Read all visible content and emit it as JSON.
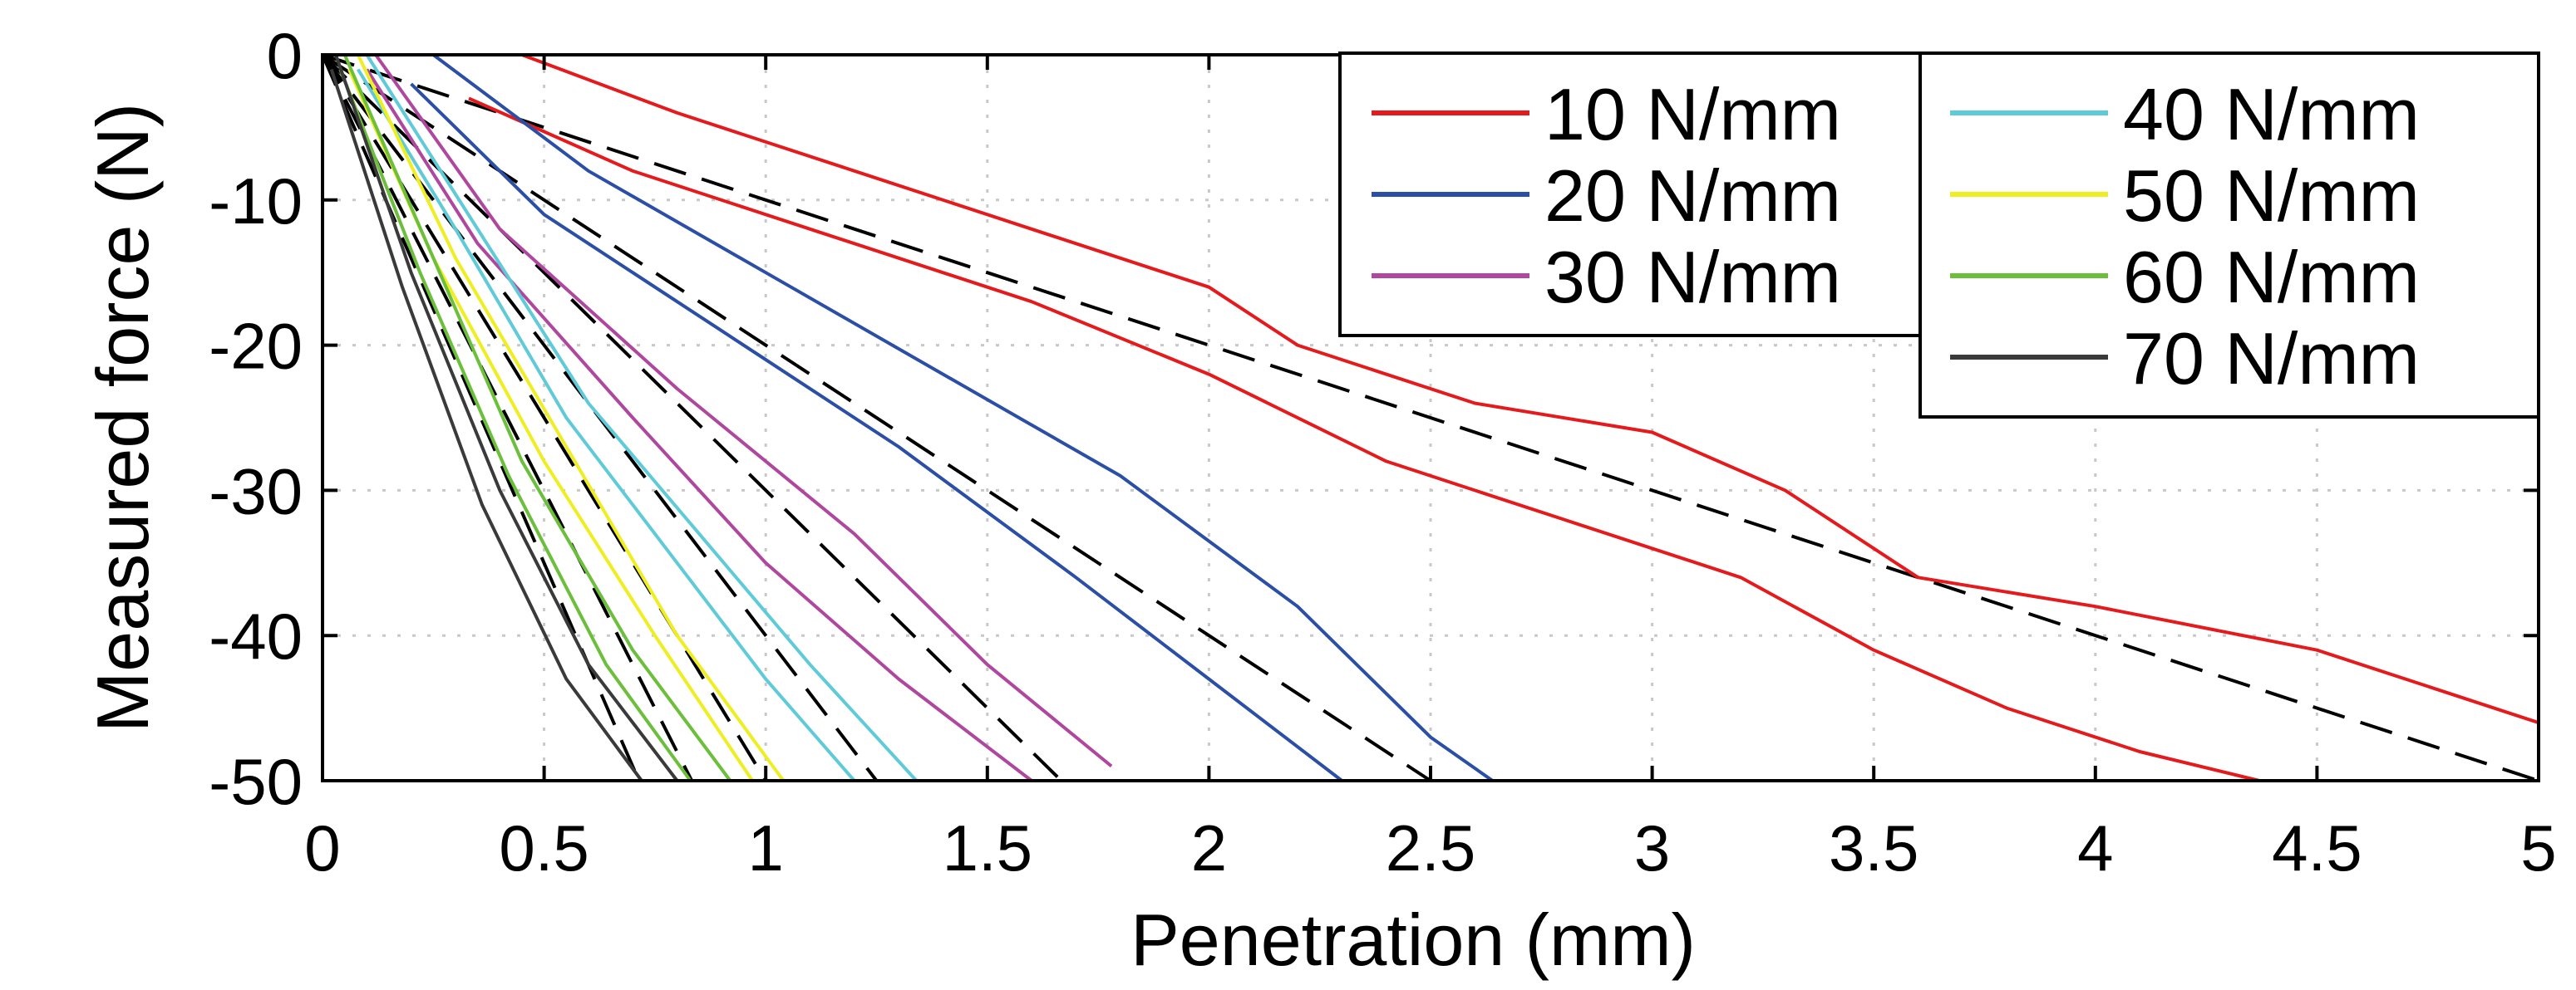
{
  "chart_data": {
    "type": "line",
    "title": "",
    "xlabel": "Penetration (mm)",
    "ylabel": "Measured force (N)",
    "xlim": [
      0,
      5
    ],
    "ylim": [
      -50,
      0
    ],
    "xticks": [
      0,
      0.5,
      1,
      1.5,
      2,
      2.5,
      3,
      3.5,
      4,
      4.5,
      5
    ],
    "xtick_labels": [
      "0",
      "0.5",
      "1",
      "1.5",
      "2",
      "2.5",
      "3",
      "3.5",
      "4",
      "4.5",
      "5"
    ],
    "yticks": [
      0,
      -10,
      -20,
      -30,
      -40,
      -50
    ],
    "ytick_labels": [
      "0",
      "-10",
      "-20",
      "-30",
      "-40",
      "-50"
    ],
    "grid": true,
    "legend_position": "top-right",
    "series": [
      {
        "name": "10 N/mm",
        "color": "#e41a1c",
        "stiffness": 10,
        "runs": [
          {
            "x": [
              0.45,
              0.8,
              1.2,
              1.6,
              2.0,
              2.2,
              2.6,
              3.0,
              3.3,
              3.6,
              4.0,
              4.5,
              5.0
            ],
            "y": [
              0,
              -4,
              -8,
              -12,
              -16,
              -20,
              -24,
              -26,
              -30,
              -36,
              -38,
              -41,
              -46
            ]
          },
          {
            "x": [
              0.33,
              0.7,
              1.1,
              1.6,
              2.0,
              2.4,
              2.8,
              3.2,
              3.5,
              3.8,
              4.1,
              4.37
            ],
            "y": [
              -3,
              -8,
              -12,
              -17,
              -22,
              -28,
              -32,
              -36,
              -41,
              -45,
              -48,
              -50
            ]
          }
        ]
      },
      {
        "name": "20 N/mm",
        "color": "#2b4fa6",
        "stiffness": 20,
        "runs": [
          {
            "x": [
              0.25,
              0.6,
              1.0,
              1.4,
              1.8,
              2.2,
              2.5,
              2.64
            ],
            "y": [
              0,
              -8,
              -15,
              -22,
              -29,
              -38,
              -47,
              -50
            ]
          },
          {
            "x": [
              0.2,
              0.5,
              0.9,
              1.3,
              1.7,
              2.0,
              2.3
            ],
            "y": [
              -2,
              -11,
              -19,
              -27,
              -36,
              -43,
              -50
            ]
          }
        ]
      },
      {
        "name": "30 N/mm",
        "color": "#b0479f",
        "stiffness": 30,
        "runs": [
          {
            "x": [
              0.12,
              0.4,
              0.8,
              1.2,
              1.5,
              1.78
            ],
            "y": [
              0,
              -12,
              -23,
              -33,
              -42,
              -49
            ]
          },
          {
            "x": [
              0.1,
              0.35,
              0.7,
              1.0,
              1.3,
              1.6
            ],
            "y": [
              -1,
              -13,
              -25,
              -35,
              -43,
              -50
            ]
          }
        ]
      },
      {
        "name": "40 N/mm",
        "color": "#5fcad8",
        "stiffness": 40,
        "runs": [
          {
            "x": [
              0.1,
              0.35,
              0.6,
              0.85,
              1.1,
              1.34
            ],
            "y": [
              0,
              -12,
              -24,
              -33,
              -42,
              -50
            ]
          },
          {
            "x": [
              0.08,
              0.3,
              0.55,
              0.8,
              1.0,
              1.2
            ],
            "y": [
              -1,
              -12,
              -25,
              -35,
              -43,
              -50
            ]
          }
        ]
      },
      {
        "name": "50 N/mm",
        "color": "#eeee22",
        "stiffness": 50,
        "runs": [
          {
            "x": [
              0.08,
              0.3,
              0.55,
              0.8,
              1.04
            ],
            "y": [
              0,
              -14,
              -27,
              -40,
              -50
            ]
          },
          {
            "x": [
              0.06,
              0.25,
              0.5,
              0.75,
              0.97
            ],
            "y": [
              -1,
              -14,
              -28,
              -40,
              -50
            ]
          }
        ]
      },
      {
        "name": "60 N/mm",
        "color": "#6bbf3a",
        "stiffness": 60,
        "runs": [
          {
            "x": [
              0.05,
              0.25,
              0.45,
              0.7,
              0.92
            ],
            "y": [
              0,
              -14,
              -28,
              -41,
              -50
            ]
          },
          {
            "x": [
              0.04,
              0.22,
              0.42,
              0.64,
              0.83
            ],
            "y": [
              -1,
              -15,
              -29,
              -42,
              -50
            ]
          }
        ]
      },
      {
        "name": "70 N/mm",
        "color": "#3a3a3a",
        "stiffness": 70,
        "runs": [
          {
            "x": [
              0.03,
              0.2,
              0.4,
              0.6,
              0.8
            ],
            "y": [
              0,
              -15,
              -30,
              -42,
              -50
            ]
          },
          {
            "x": [
              0.02,
              0.18,
              0.36,
              0.55,
              0.72
            ],
            "y": [
              -1,
              -16,
              -31,
              -43,
              -50
            ]
          }
        ]
      }
    ],
    "fit_lines": [
      {
        "stiffness": 10,
        "x": [
          0,
          5
        ],
        "y": [
          0,
          -50
        ]
      },
      {
        "stiffness": 20,
        "x": [
          0,
          2.5
        ],
        "y": [
          0,
          -50
        ]
      },
      {
        "stiffness": 30,
        "x": [
          0,
          1.667
        ],
        "y": [
          0,
          -50
        ]
      },
      {
        "stiffness": 40,
        "x": [
          0,
          1.25
        ],
        "y": [
          0,
          -50
        ]
      },
      {
        "stiffness": 50,
        "x": [
          0,
          1.0
        ],
        "y": [
          0,
          -50
        ]
      },
      {
        "stiffness": 60,
        "x": [
          0,
          0.833
        ],
        "y": [
          0,
          -50
        ]
      },
      {
        "stiffness": 70,
        "x": [
          0,
          0.714
        ],
        "y": [
          0,
          -50
        ]
      }
    ]
  }
}
